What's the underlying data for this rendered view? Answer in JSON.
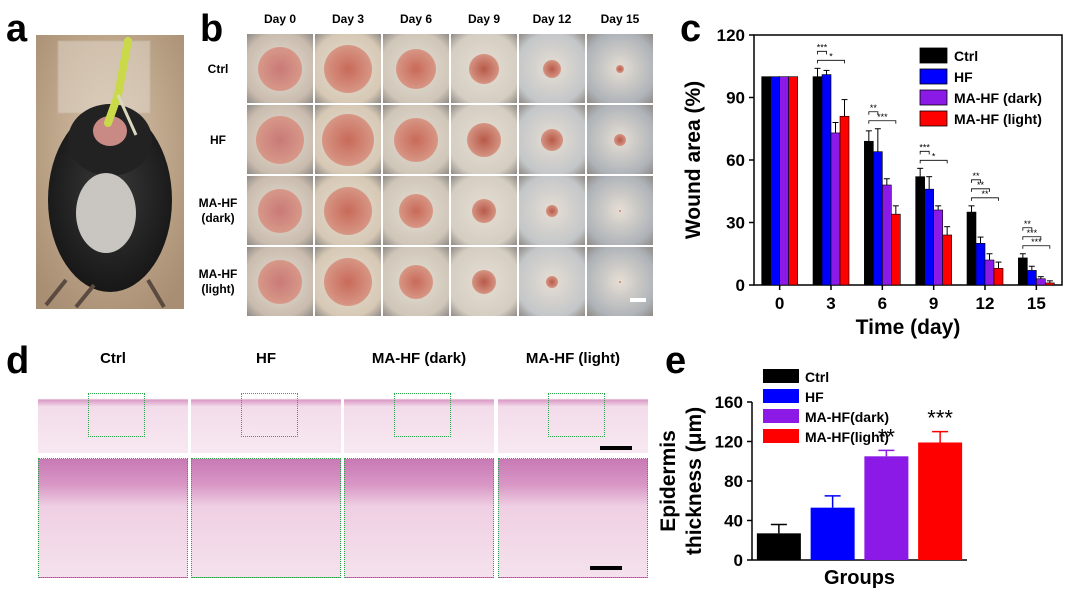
{
  "panels": {
    "a": "a",
    "b": "b",
    "c": "c",
    "d": "d",
    "e": "e"
  },
  "panel_b": {
    "days": [
      "Day 0",
      "Day 3",
      "Day 6",
      "Day 9",
      "Day 12",
      "Day 15"
    ],
    "groups": [
      {
        "line1": "Ctrl",
        "line2": ""
      },
      {
        "line1": "HF",
        "line2": ""
      },
      {
        "line1": "MA-HF",
        "line2": "(dark)"
      },
      {
        "line1": "MA-HF",
        "line2": "(light)"
      }
    ]
  },
  "panel_d": {
    "groups": [
      "Ctrl",
      "HF",
      "MA-HF (dark)",
      "MA-HF (light)"
    ]
  },
  "colors": {
    "ctrl": "#000000",
    "hf": "#0000ff",
    "dark": "#8b1ae6",
    "light": "#ff0000"
  },
  "chart_data": [
    {
      "panel": "c",
      "type": "bar",
      "xlabel": "Time (day)",
      "ylabel": "Wound area (%)",
      "categories": [
        "0",
        "3",
        "6",
        "9",
        "12",
        "15"
      ],
      "ylim": [
        0,
        120
      ],
      "yticks": [
        "0",
        "30",
        "60",
        "90",
        "120"
      ],
      "legend_position": "top-right",
      "series": [
        {
          "name": "Ctrl",
          "color": "#000000",
          "values": [
            100,
            100,
            69,
            52,
            35,
            13
          ],
          "errors": [
            0,
            4,
            5,
            4,
            3,
            2
          ]
        },
        {
          "name": "HF",
          "color": "#0000ff",
          "values": [
            100,
            101,
            64,
            46,
            20,
            7
          ],
          "errors": [
            0,
            2,
            11,
            6,
            3,
            2
          ]
        },
        {
          "name": "MA-HF (dark)",
          "color": "#8b1ae6",
          "values": [
            100,
            73,
            48,
            36,
            12,
            3
          ],
          "errors": [
            0,
            5,
            3,
            2,
            3,
            1
          ]
        },
        {
          "name": "MA-HF (light)",
          "color": "#ff0000",
          "values": [
            100,
            81,
            34,
            24,
            8,
            1
          ],
          "errors": [
            0,
            8,
            4,
            4,
            3,
            1
          ]
        }
      ],
      "annotations": [
        {
          "day": "3",
          "labels": [
            "***",
            "*"
          ]
        },
        {
          "day": "6",
          "labels": [
            "**",
            "***"
          ]
        },
        {
          "day": "9",
          "labels": [
            "***",
            "*"
          ]
        },
        {
          "day": "12",
          "labels": [
            "**",
            "**",
            "**"
          ]
        },
        {
          "day": "15",
          "labels": [
            "**",
            "***",
            "***"
          ]
        }
      ]
    },
    {
      "panel": "e",
      "type": "bar",
      "xlabel": "Groups",
      "ylabel_line1": "Epidermis",
      "ylabel_line2": "thickness (μm)",
      "categories": [
        "Ctrl",
        "HF",
        "MA-HF(dark)",
        "MA-HF(light)"
      ],
      "colors": [
        "#000000",
        "#0000ff",
        "#8b1ae6",
        "#ff0000"
      ],
      "values": [
        27,
        53,
        105,
        119
      ],
      "errors": [
        9,
        12,
        6,
        11
      ],
      "significance": [
        "",
        "",
        "**",
        "***"
      ],
      "ylim": [
        0,
        160
      ],
      "yticks": [
        "0",
        "40",
        "80",
        "120",
        "160"
      ],
      "legend_position": "top-left"
    }
  ]
}
